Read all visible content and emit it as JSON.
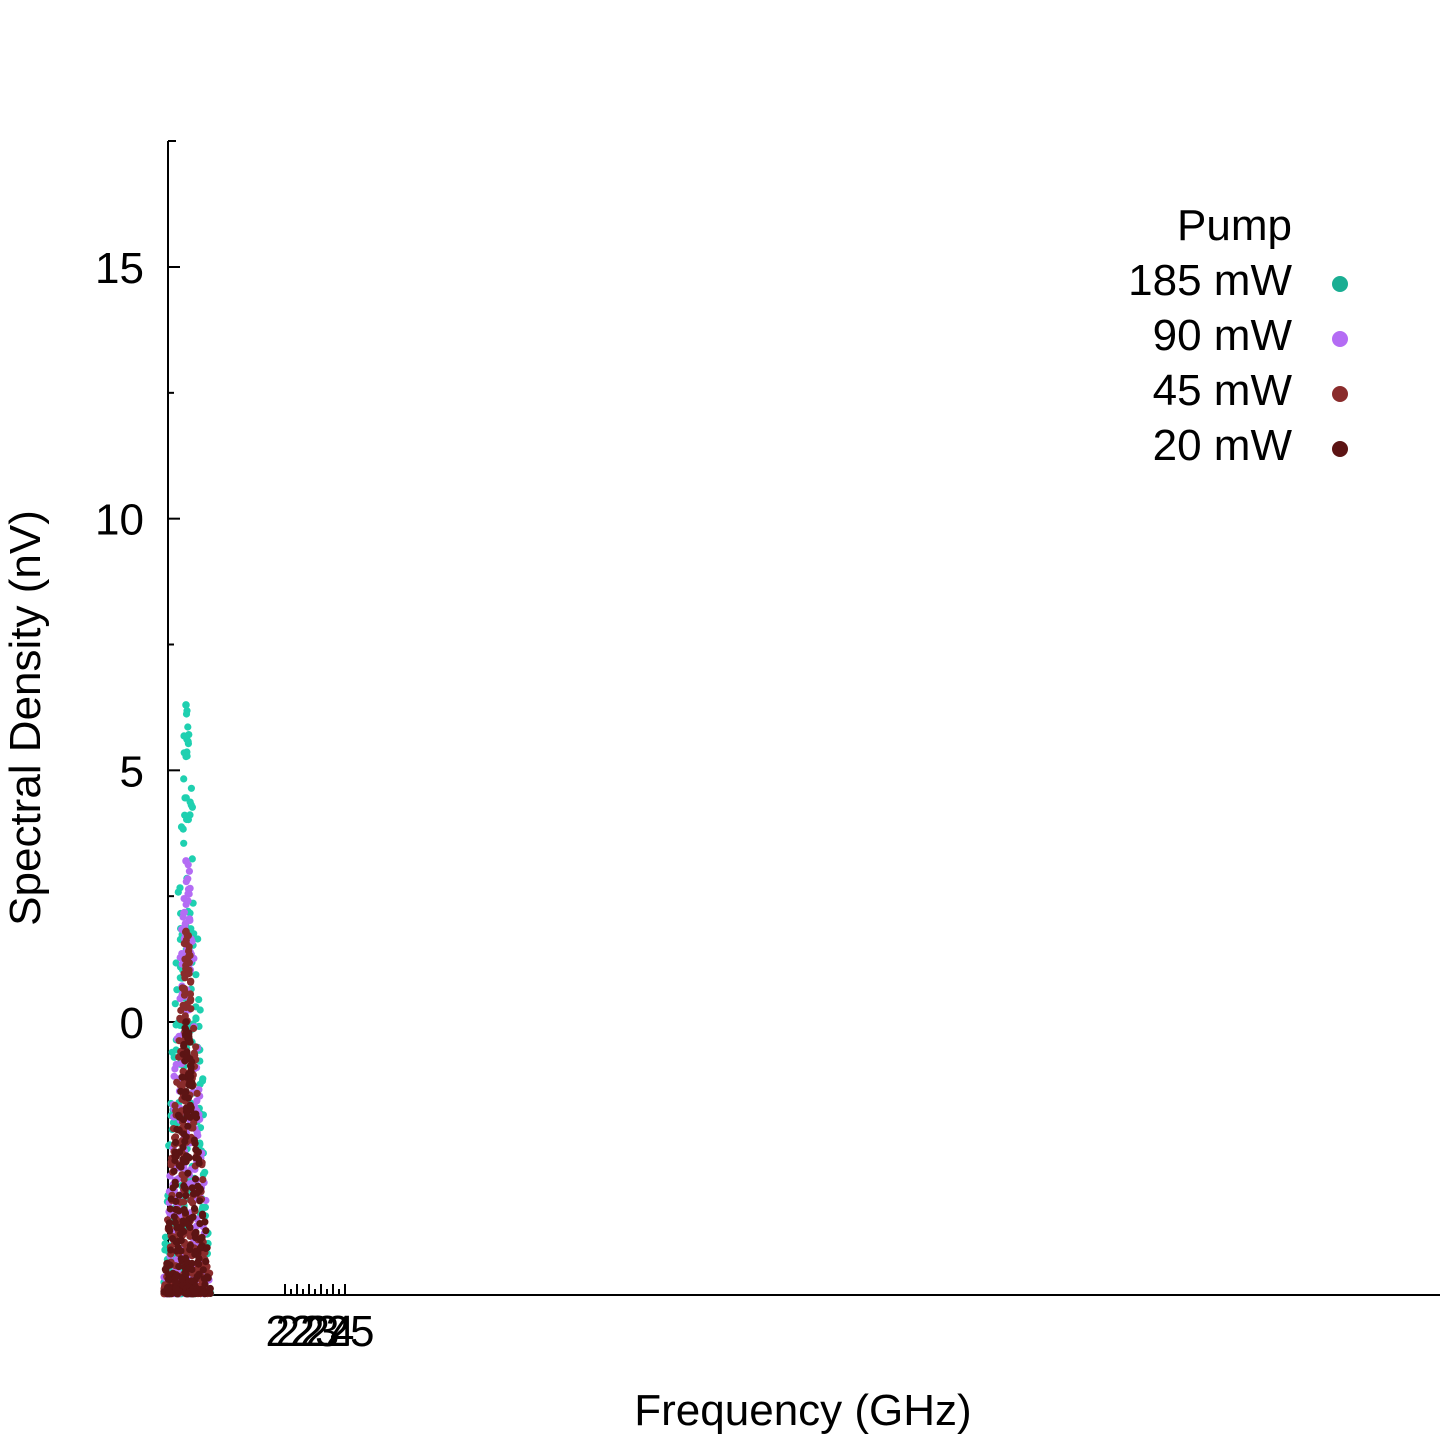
{
  "chart_data": {
    "type": "scatter",
    "title": "",
    "xlabel": "Frequency (GHz)",
    "ylabel": "Spectral Density (nV)",
    "ylim": [
      -5.5,
      17.5
    ],
    "yticks": [
      0,
      5,
      10,
      15
    ],
    "xtick_labels": [
      "22",
      "22",
      "23",
      "24",
      "25"
    ],
    "grid": false,
    "legend": {
      "title": "Pump",
      "position": "top-right",
      "entries": [
        "185 mW",
        "90 mW",
        "45 mW",
        "20 mW"
      ]
    },
    "series": [
      {
        "name": "185 mW",
        "color": "#1fd0b0",
        "legend_color": "#1aae93",
        "peak": 6.3,
        "x": [
          1
        ],
        "y": [
          6.3
        ]
      },
      {
        "name": "90 mW",
        "color": "#b46cf4",
        "legend_color": "#b46cf4",
        "peak": 3.2,
        "x": [
          1
        ],
        "y": [
          3.2
        ]
      },
      {
        "name": "45 mW",
        "color": "#8a2c2c",
        "legend_color": "#8a2c2c",
        "peak": 1.8,
        "x": [
          1
        ],
        "y": [
          1.8
        ]
      },
      {
        "name": "20 mW",
        "color": "#5c1414",
        "legend_color": "#5c1414",
        "peak": 0.0,
        "x": [
          1
        ],
        "y": [
          0.0
        ]
      }
    ]
  }
}
